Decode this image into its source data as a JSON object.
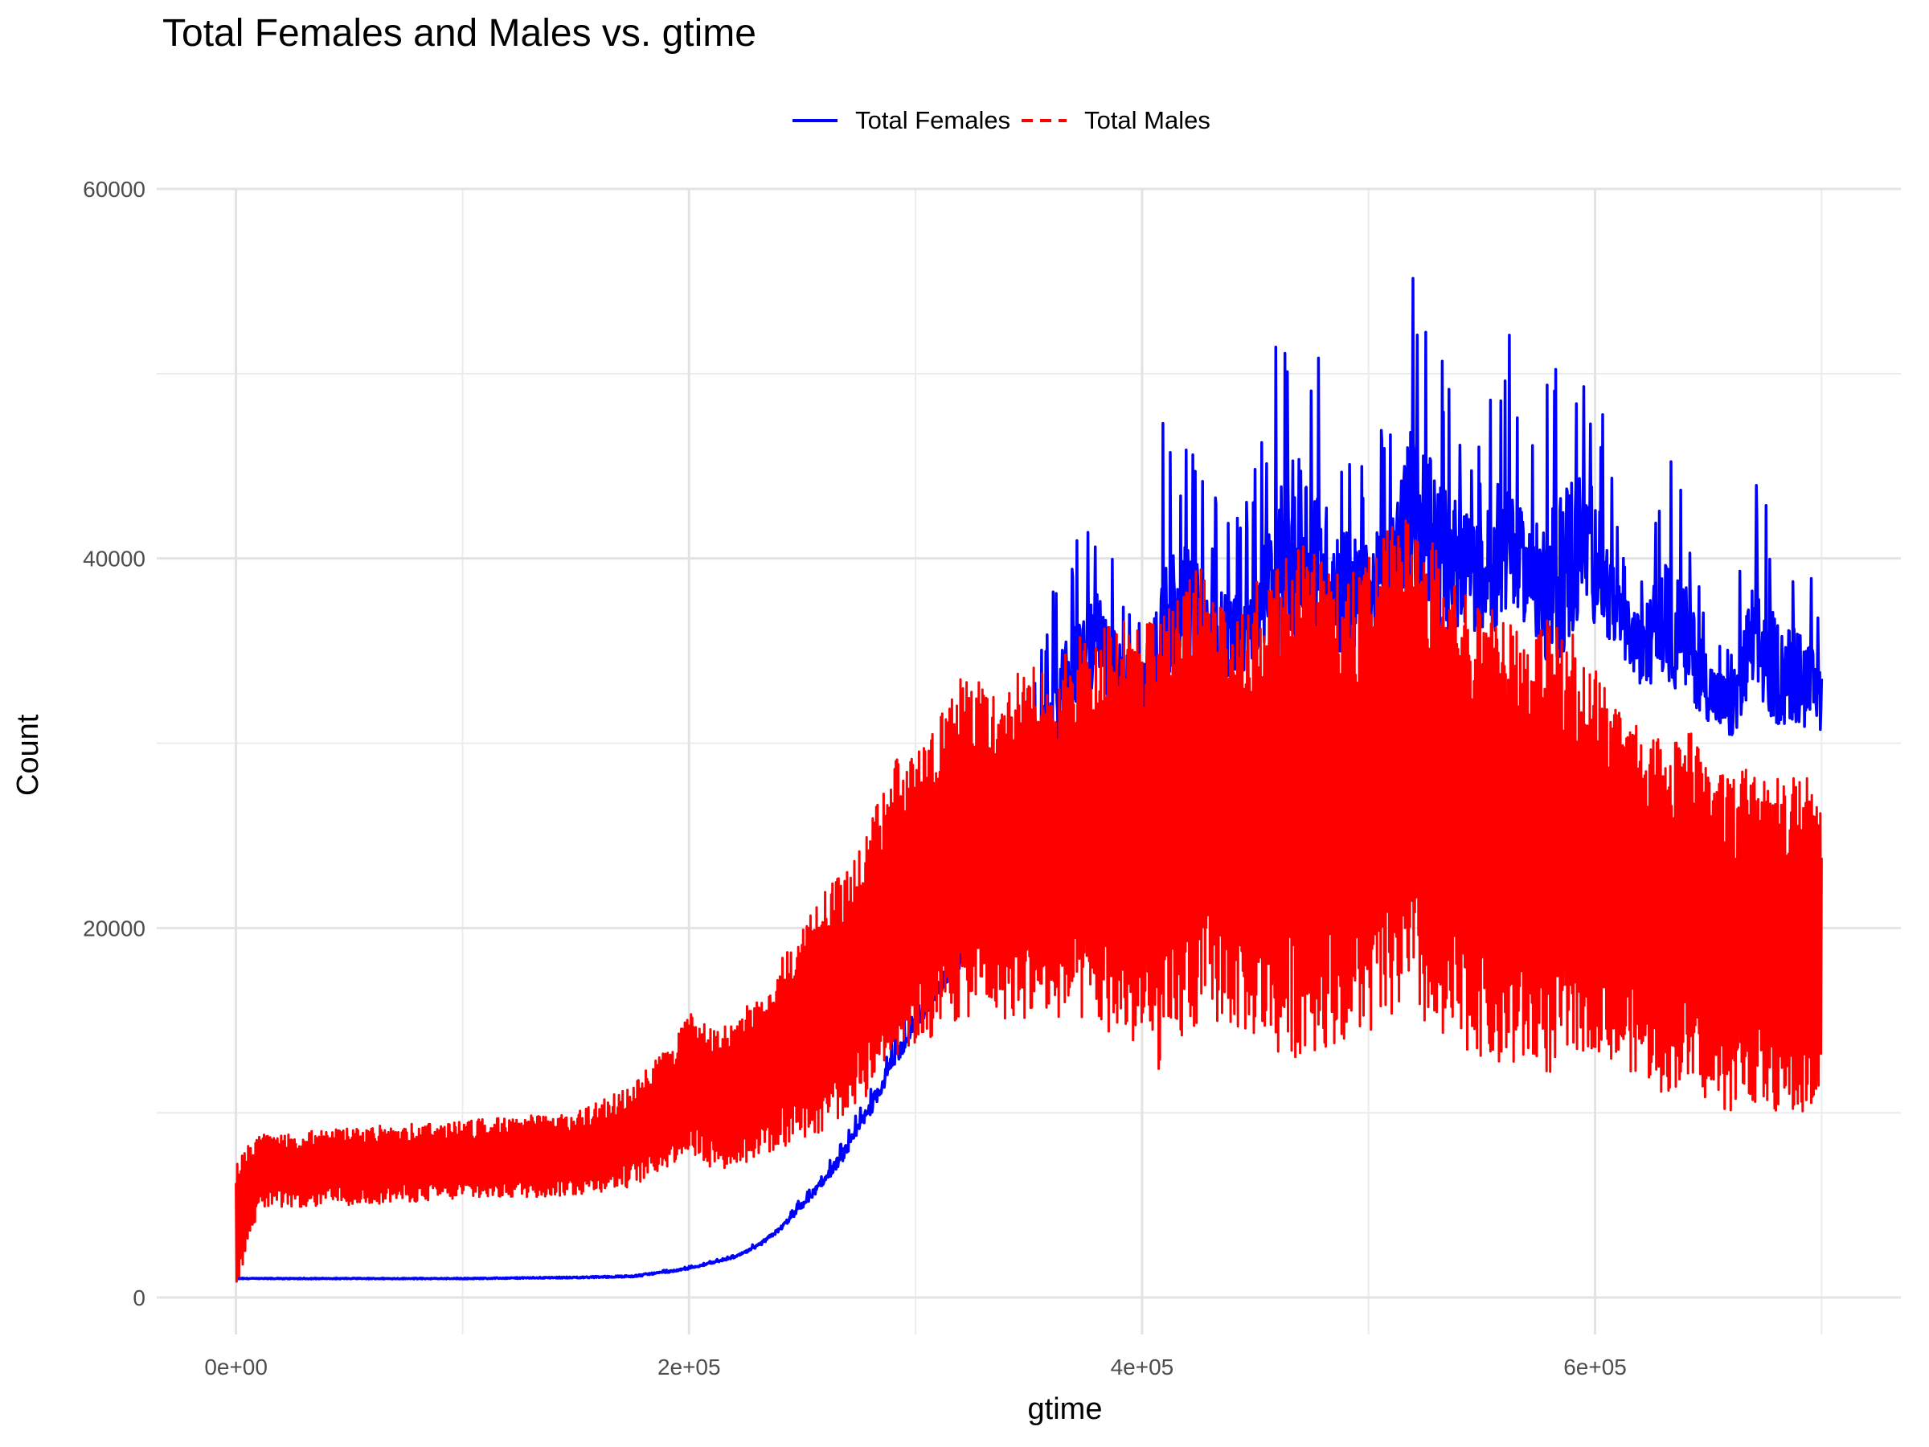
{
  "chart_data": {
    "type": "line",
    "title": "Total Females and Males vs. gtime",
    "xlabel": "gtime",
    "ylabel": "Count",
    "xlim": [
      -35000,
      735000
    ],
    "ylim": [
      -2000,
      60000
    ],
    "x_ticks": [
      {
        "value": 0,
        "label": "0e+00"
      },
      {
        "value": 200000,
        "label": "2e+05"
      },
      {
        "value": 400000,
        "label": "4e+05"
      },
      {
        "value": 600000,
        "label": "6e+05"
      }
    ],
    "y_ticks": [
      {
        "value": 0,
        "label": "0"
      },
      {
        "value": 20000,
        "label": "20000"
      },
      {
        "value": 40000,
        "label": "40000"
      },
      {
        "value": 60000,
        "label": "60000"
      }
    ],
    "grid": true,
    "legend_position": "top",
    "series": [
      {
        "name": "Total Females",
        "color": "#0000ff",
        "line_style": "solid",
        "x": [
          0,
          50000,
          100000,
          150000,
          175000,
          190000,
          200000,
          210000,
          220000,
          230000,
          240000,
          250000,
          260000,
          270000,
          280000,
          290000,
          300000,
          310000,
          320000,
          330000,
          340000,
          350000,
          360000,
          370000,
          380000,
          390000,
          400000,
          410000,
          420000,
          430000,
          440000,
          450000,
          460000,
          470000,
          480000,
          490000,
          500000,
          510000,
          520000,
          530000,
          540000,
          550000,
          560000,
          570000,
          580000,
          590000,
          600000,
          610000,
          620000,
          630000,
          640000,
          650000,
          660000,
          670000,
          680000,
          690000,
          700000
        ],
        "low": [
          1000,
          1000,
          1000,
          1050,
          1100,
          1300,
          1500,
          1800,
          2100,
          2600,
          3500,
          4700,
          6000,
          7500,
          9500,
          12000,
          14000,
          16000,
          17500,
          19000,
          21000,
          24000,
          27000,
          30000,
          31000,
          29000,
          28000,
          30000,
          31000,
          30500,
          32000,
          32000,
          30000,
          32000,
          33000,
          32000,
          33000,
          34000,
          34500,
          33000,
          34000,
          34000,
          33000,
          35000,
          31000,
          32000,
          34000,
          33500,
          32000,
          31000,
          30500,
          30000,
          29000,
          30000,
          29000,
          29000,
          29500
        ],
        "high": [
          1100,
          1100,
          1100,
          1200,
          1300,
          1500,
          1700,
          2000,
          2300,
          3000,
          4000,
          5500,
          7000,
          9000,
          11500,
          14000,
          16000,
          18000,
          20000,
          23000,
          27000,
          33000,
          38000,
          41000,
          43000,
          40000,
          38000,
          49000,
          47000,
          44000,
          42000,
          45000,
          53000,
          55500,
          50000,
          48000,
          46000,
          48000,
          57000,
          52000,
          49000,
          47000,
          54000,
          46000,
          50000,
          54000,
          51000,
          42000,
          40000,
          46000,
          44000,
          38000,
          36000,
          45000,
          42000,
          41000,
          37500
        ]
      },
      {
        "name": "Total Males",
        "color": "#ff0000",
        "line_style": "dashed",
        "x": [
          0,
          10000,
          50000,
          100000,
          150000,
          175000,
          190000,
          200000,
          210000,
          220000,
          230000,
          240000,
          250000,
          260000,
          270000,
          280000,
          290000,
          300000,
          310000,
          320000,
          330000,
          340000,
          350000,
          360000,
          370000,
          380000,
          390000,
          400000,
          410000,
          420000,
          430000,
          440000,
          450000,
          460000,
          470000,
          480000,
          490000,
          500000,
          510000,
          520000,
          530000,
          540000,
          550000,
          560000,
          570000,
          580000,
          590000,
          600000,
          610000,
          620000,
          630000,
          640000,
          650000,
          660000,
          670000,
          680000,
          690000,
          700000
        ],
        "low": [
          500,
          4800,
          5000,
          5300,
          5500,
          6000,
          7000,
          7800,
          7000,
          7000,
          7500,
          8000,
          8500,
          9000,
          10000,
          11000,
          13000,
          13500,
          14000,
          15000,
          15500,
          15000,
          15000,
          15000,
          15000,
          14500,
          14000,
          13000,
          12000,
          14000,
          15000,
          14500,
          14000,
          13000,
          13000,
          13500,
          14000,
          14000,
          15000,
          15500,
          13000,
          13500,
          13000,
          12000,
          12500,
          12000,
          13000,
          13500,
          12500,
          12000,
          11000,
          11500,
          10500,
          10000,
          10500,
          10000,
          9500,
          10500
        ],
        "high": [
          7500,
          8800,
          9200,
          9600,
          10000,
          11500,
          13500,
          15500,
          14500,
          15000,
          16500,
          18500,
          20000,
          22000,
          24000,
          26000,
          29000,
          30000,
          31000,
          34500,
          33500,
          33000,
          35000,
          33000,
          36000,
          36000,
          37000,
          36000,
          38000,
          40000,
          39000,
          38000,
          39000,
          40000,
          41000,
          40000,
          39000,
          40000,
          42000,
          42500,
          41000,
          38000,
          38000,
          38000,
          35000,
          37000,
          36000,
          34000,
          32000,
          31500,
          30000,
          31000,
          29000,
          28000,
          29000,
          28000,
          29000,
          27500
        ]
      }
    ]
  }
}
